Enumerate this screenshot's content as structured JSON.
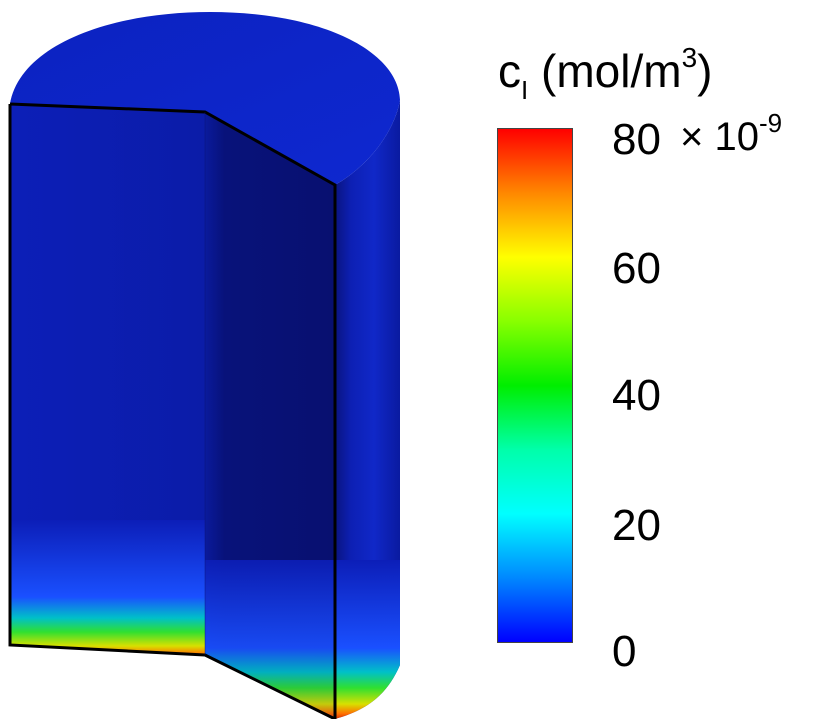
{
  "colorbar": {
    "title_symbol": "c",
    "title_subscript": "I",
    "title_unit_open": " (mol/m",
    "title_unit_sup": "3",
    "title_unit_close": ")",
    "multiplier_base": "× 10",
    "multiplier_exp": "-9",
    "min": 0,
    "max": 80,
    "ticks": [
      "80",
      "60",
      "40",
      "20",
      "0"
    ],
    "colors": [
      "#ff0000",
      "#ff8800",
      "#ffff00",
      "#88ff00",
      "#00ee00",
      "#00ffaa",
      "#00ffff",
      "#0088ff",
      "#0000ff"
    ]
  },
  "model": {
    "base_color": "#0a20c8",
    "side_color": "#0d1fb0",
    "dark_face_color": "#0a1590",
    "bottom_band_colors": [
      "#1a40ff",
      "#00c8c8",
      "#40e020",
      "#c8e000",
      "#ff6a00",
      "#e03000"
    ]
  }
}
